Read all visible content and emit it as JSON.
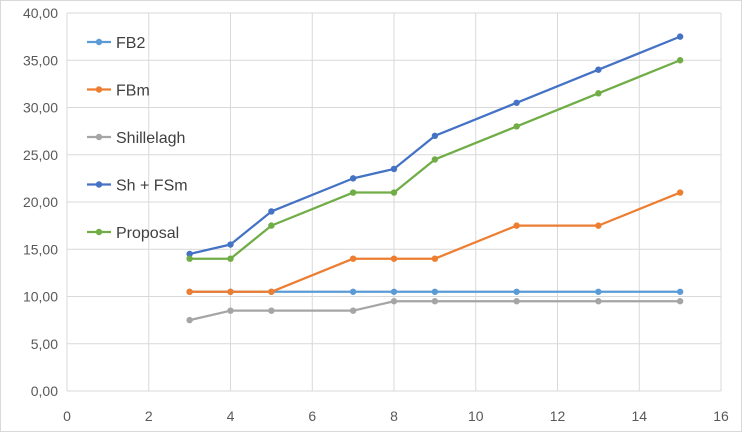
{
  "chart_data": {
    "type": "line",
    "title": "",
    "xlabel": "",
    "ylabel": "",
    "xlim": [
      0,
      16
    ],
    "ylim": [
      0,
      40
    ],
    "x_ticks": [
      0,
      2,
      4,
      6,
      8,
      10,
      12,
      14,
      16
    ],
    "x_tick_labels": [
      "0",
      "2",
      "4",
      "6",
      "8",
      "10",
      "12",
      "14",
      "16"
    ],
    "y_ticks": [
      0,
      5,
      10,
      15,
      20,
      25,
      30,
      35,
      40
    ],
    "y_tick_labels": [
      "0,00",
      "5,00",
      "10,00",
      "15,00",
      "20,00",
      "25,00",
      "30,00",
      "35,00",
      "40,00"
    ],
    "grid": true,
    "legend_position": "top-left inside",
    "x": [
      3,
      4,
      5,
      7,
      8,
      9,
      11,
      13,
      15
    ],
    "series": [
      {
        "name": "FB2",
        "color": "#5B9BD5",
        "values": [
          10.5,
          10.5,
          10.5,
          10.5,
          10.5,
          10.5,
          10.5,
          10.5,
          10.5
        ]
      },
      {
        "name": "FBm",
        "color": "#ED7D31",
        "values": [
          10.5,
          10.5,
          10.5,
          14,
          14,
          14,
          17.5,
          17.5,
          21
        ]
      },
      {
        "name": "Shillelagh",
        "color": "#A5A5A5",
        "values": [
          7.5,
          8.5,
          8.5,
          8.5,
          9.5,
          9.5,
          9.5,
          9.5,
          9.5
        ]
      },
      {
        "name": "Sh + FSm",
        "color": "#4472C4",
        "values": [
          14.5,
          15.5,
          19,
          22.5,
          23.5,
          27,
          30.5,
          34,
          37.5
        ]
      },
      {
        "name": "Proposal",
        "color": "#70AD47",
        "values": [
          14,
          14,
          17.5,
          21,
          21,
          24.5,
          28,
          31.5,
          35
        ]
      }
    ]
  }
}
